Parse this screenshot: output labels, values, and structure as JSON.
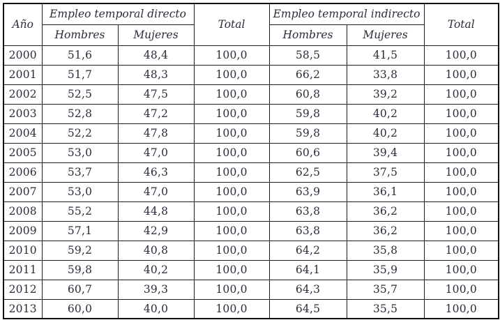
{
  "table": {
    "header": {
      "year_label": "Año",
      "group_direct": "Empleo temporal directo",
      "group_indirect": "Empleo temporal indirecto",
      "men_label": "Hombres",
      "women_label": "Mujeres",
      "total_label": "Total"
    },
    "columns": [
      "year",
      "direct_hombres",
      "direct_mujeres",
      "direct_total",
      "indirect_hombres",
      "indirect_mujeres",
      "indirect_total"
    ],
    "rows": [
      [
        "2000",
        "51,6",
        "48,4",
        "100,0",
        "58,5",
        "41,5",
        "100,0"
      ],
      [
        "2001",
        "51,7",
        "48,3",
        "100,0",
        "66,2",
        "33,8",
        "100,0"
      ],
      [
        "2002",
        "52,5",
        "47,5",
        "100,0",
        "60,8",
        "39,2",
        "100,0"
      ],
      [
        "2003",
        "52,8",
        "47,2",
        "100,0",
        "59,8",
        "40,2",
        "100,0"
      ],
      [
        "2004",
        "52,2",
        "47,8",
        "100,0",
        "59,8",
        "40,2",
        "100,0"
      ],
      [
        "2005",
        "53,0",
        "47,0",
        "100,0",
        "60,6",
        "39,4",
        "100,0"
      ],
      [
        "2006",
        "53,7",
        "46,3",
        "100,0",
        "62,5",
        "37,5",
        "100,0"
      ],
      [
        "2007",
        "53,0",
        "47,0",
        "100,0",
        "63,9",
        "36,1",
        "100,0"
      ],
      [
        "2008",
        "55,2",
        "44,8",
        "100,0",
        "63,8",
        "36,2",
        "100,0"
      ],
      [
        "2009",
        "57,1",
        "42,9",
        "100,0",
        "63,8",
        "36,2",
        "100,0"
      ],
      [
        "2010",
        "59,2",
        "40,8",
        "100,0",
        "64,2",
        "35,8",
        "100,0"
      ],
      [
        "2011",
        "59,8",
        "40,2",
        "100,0",
        "64,1",
        "35,9",
        "100,0"
      ],
      [
        "2012",
        "60,7",
        "39,3",
        "100,0",
        "64,3",
        "35,7",
        "100,0"
      ],
      [
        "2013",
        "60,0",
        "40,0",
        "100,0",
        "64,5",
        "35,5",
        "100,0"
      ]
    ]
  },
  "colors": {
    "text": "#2b2d3a",
    "border": "#1c1c1c",
    "background": "#ffffff"
  }
}
